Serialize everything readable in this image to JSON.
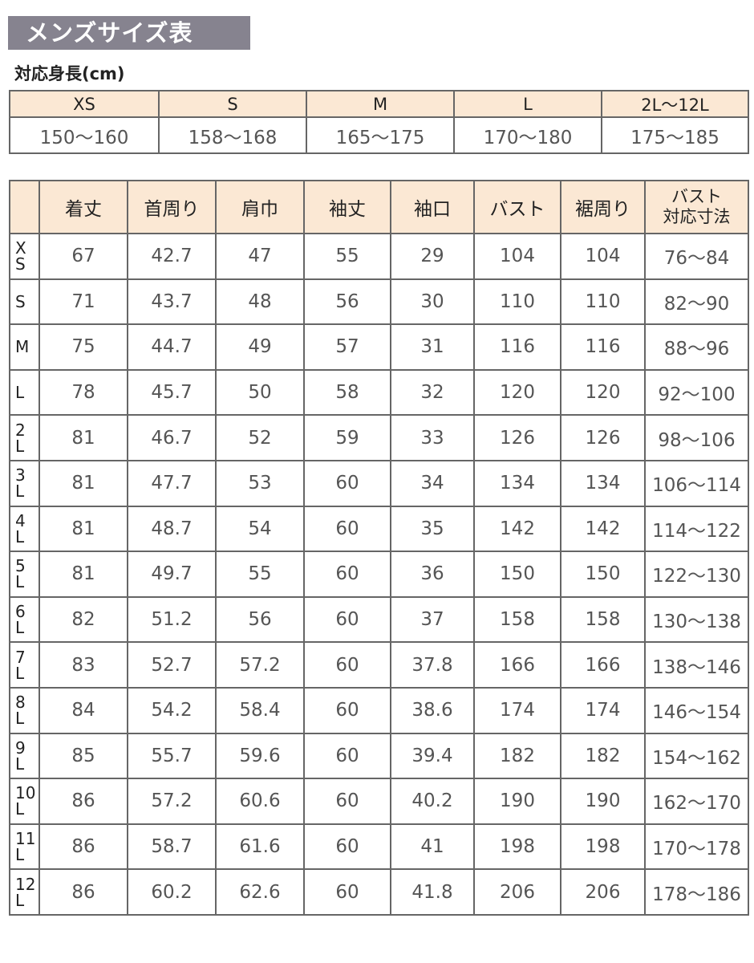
{
  "title": "メンズサイズ表",
  "height_table": {
    "title": "対応身長(cm)",
    "sizes": [
      "XS",
      "S",
      "M",
      "L",
      "2L～12L"
    ],
    "heights": [
      "150～160",
      "158～168",
      "165～175",
      "170～180",
      "175～185"
    ]
  },
  "size_table": {
    "headers": [
      "",
      "着丈",
      "首周り",
      "肩巾",
      "袖丈",
      "袖口",
      "バスト",
      "裾周り",
      "バスト\n対応寸法"
    ],
    "rows": [
      [
        "X\nS",
        "67",
        "42.7",
        "47",
        "55",
        "29",
        "104",
        "104",
        "76～84"
      ],
      [
        "S",
        "71",
        "43.7",
        "48",
        "56",
        "30",
        "110",
        "110",
        "82～90"
      ],
      [
        "M",
        "75",
        "44.7",
        "49",
        "57",
        "31",
        "116",
        "116",
        "88～96"
      ],
      [
        "L",
        "78",
        "45.7",
        "50",
        "58",
        "32",
        "120",
        "120",
        "92～100"
      ],
      [
        "2\nL",
        "81",
        "46.7",
        "52",
        "59",
        "33",
        "126",
        "126",
        "98～106"
      ],
      [
        "3\nL",
        "81",
        "47.7",
        "53",
        "60",
        "34",
        "134",
        "134",
        "106～114"
      ],
      [
        "4\nL",
        "81",
        "48.7",
        "54",
        "60",
        "35",
        "142",
        "142",
        "114～122"
      ],
      [
        "5\nL",
        "81",
        "49.7",
        "55",
        "60",
        "36",
        "150",
        "150",
        "122～130"
      ],
      [
        "6\nL",
        "82",
        "51.2",
        "56",
        "60",
        "37",
        "158",
        "158",
        "130～138"
      ],
      [
        "7\nL",
        "83",
        "52.7",
        "57.2",
        "60",
        "37.8",
        "166",
        "166",
        "138～146"
      ],
      [
        "8\nL",
        "84",
        "54.2",
        "58.4",
        "60",
        "38.6",
        "174",
        "174",
        "146～154"
      ],
      [
        "9\nL",
        "85",
        "55.7",
        "59.6",
        "60",
        "39.4",
        "182",
        "182",
        "154～162"
      ],
      [
        "10\nL",
        "86",
        "57.2",
        "60.6",
        "60",
        "40.2",
        "190",
        "190",
        "162～170"
      ],
      [
        "11\nL",
        "86",
        "58.7",
        "61.6",
        "60",
        "41",
        "198",
        "198",
        "170～178"
      ],
      [
        "12\nL",
        "86",
        "60.2",
        "62.6",
        "60",
        "41.8",
        "206",
        "206",
        "178～186"
      ]
    ]
  },
  "colors": {
    "title_bg": "#86838f",
    "header_bg": "#fbe8d4",
    "border": "#666666",
    "value_text": "#555555"
  }
}
